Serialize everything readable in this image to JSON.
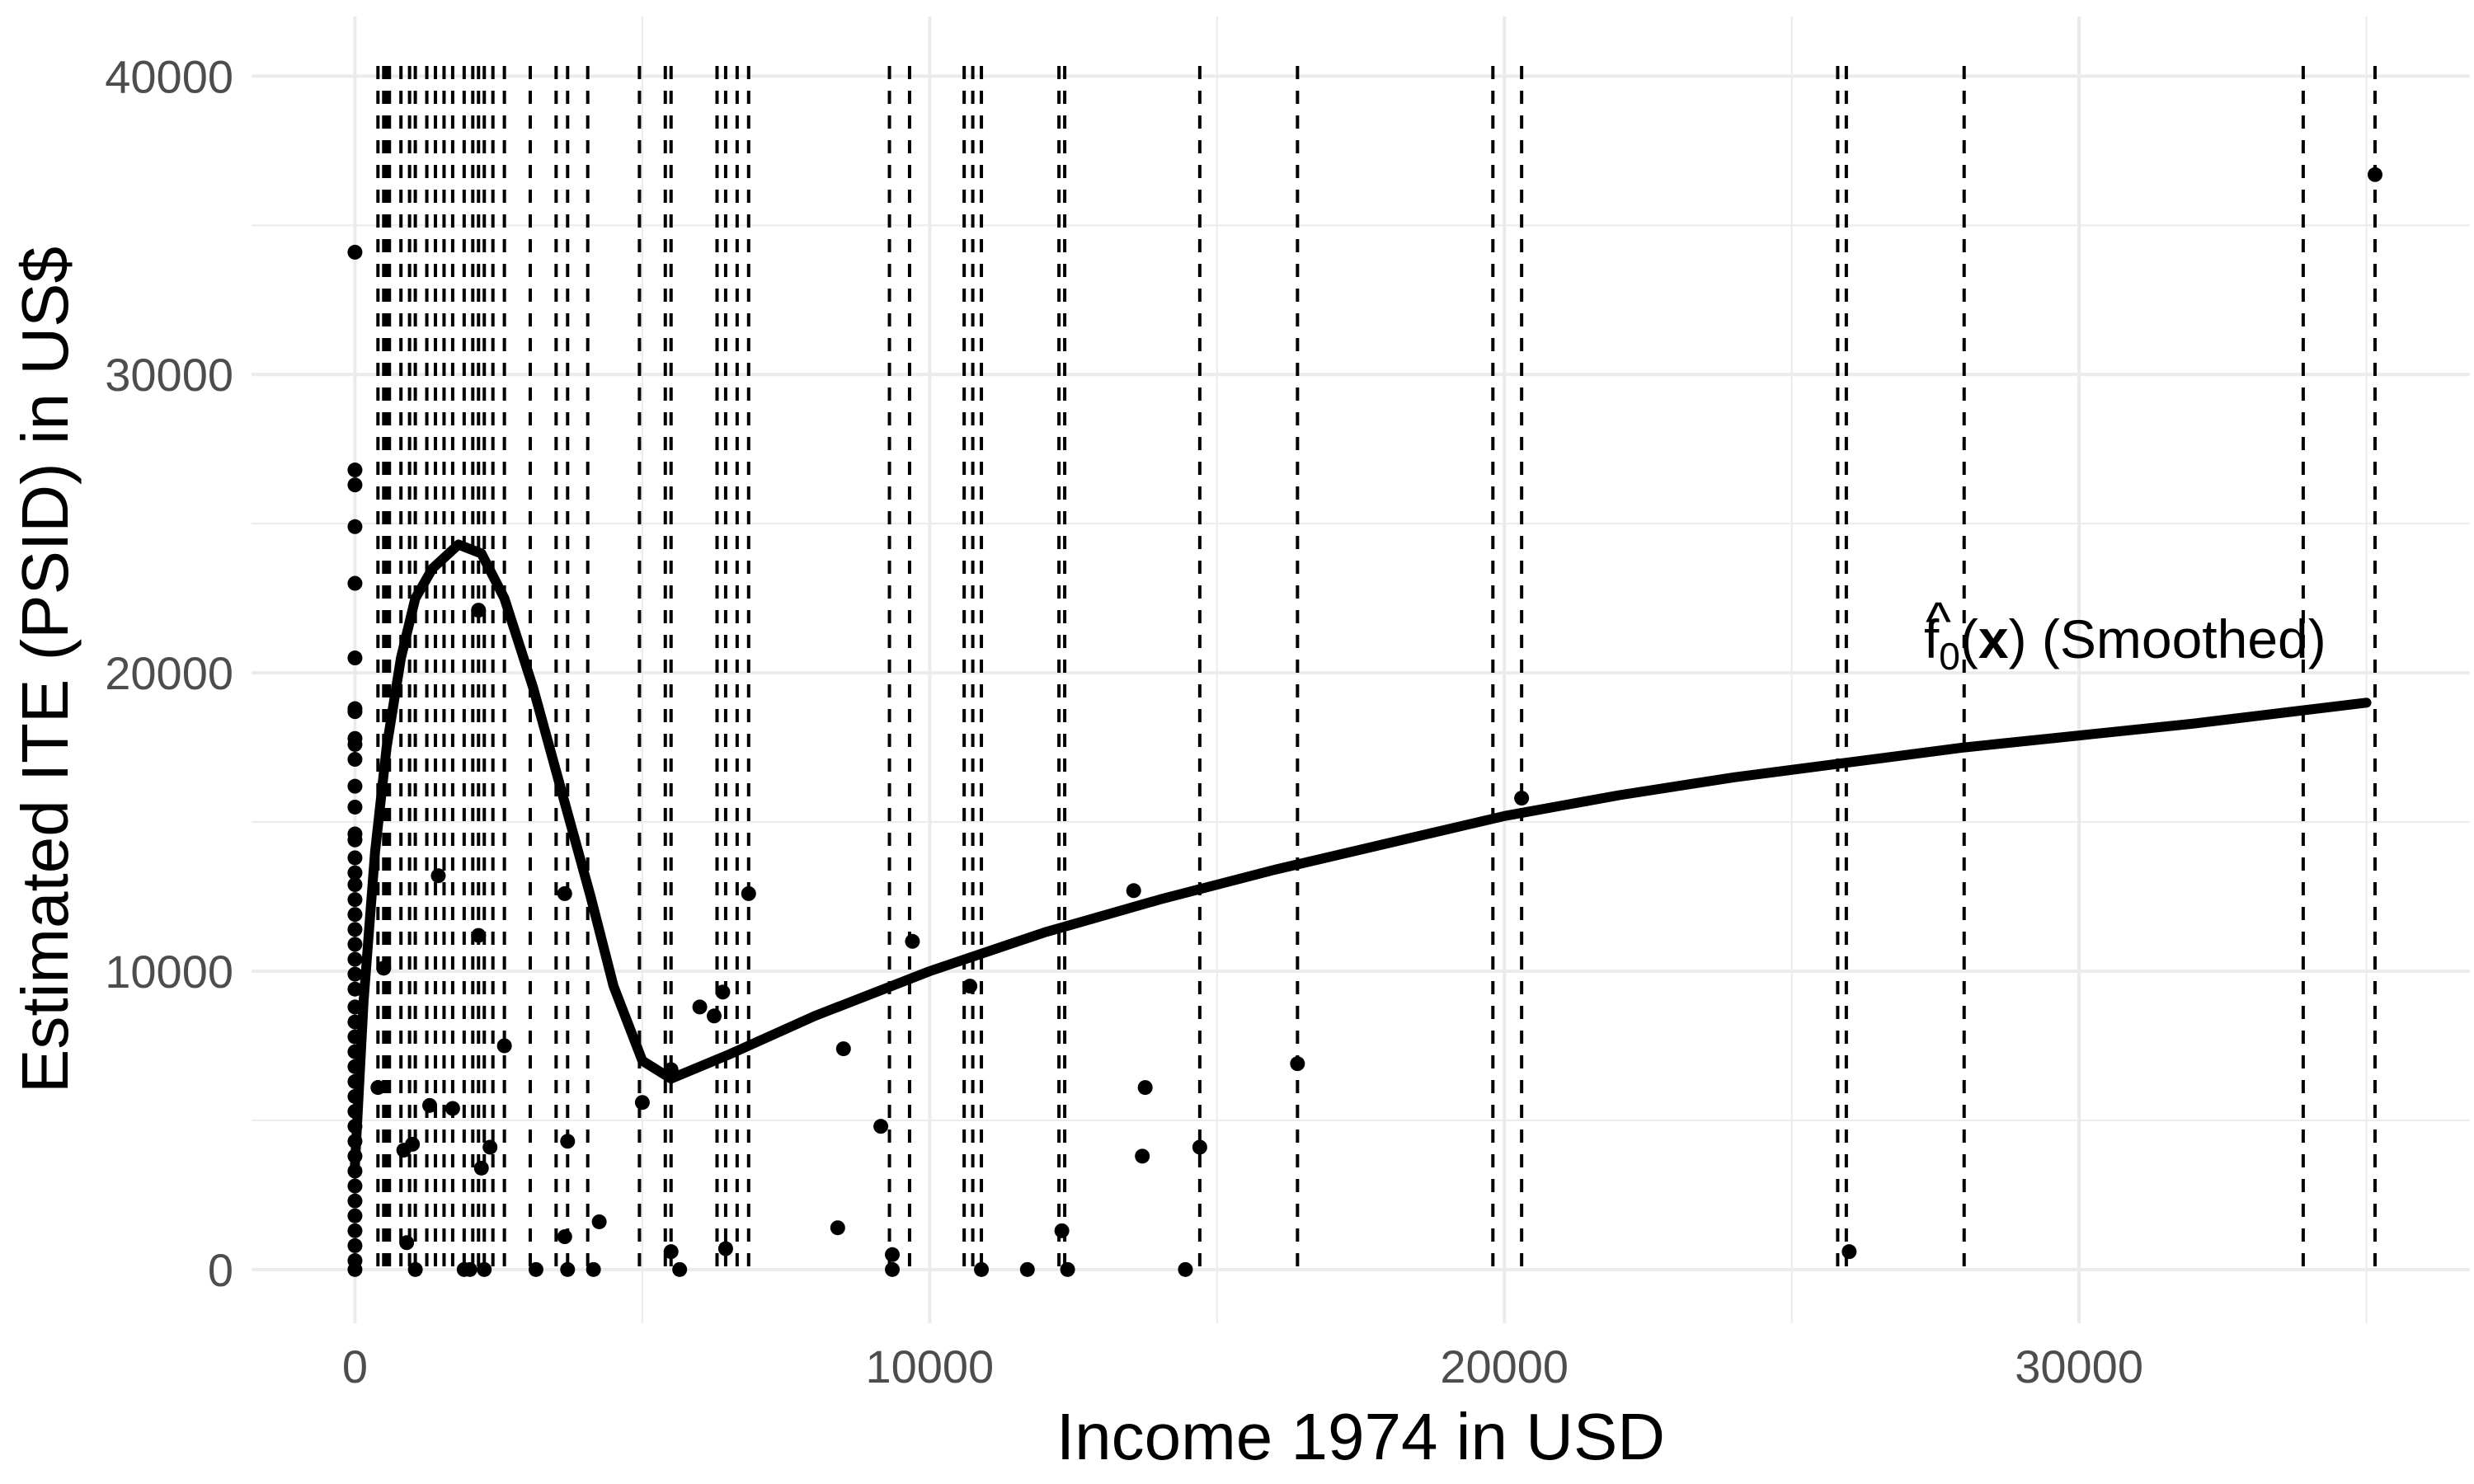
{
  "chart_data": {
    "type": "scatter",
    "xlabel": "Income 1974 in USD",
    "ylabel": "Estimated ITE (PSID) in US$",
    "xlim": [
      -1800,
      36800
    ],
    "ylim": [
      -1800,
      42000
    ],
    "x_ticks": [
      0,
      10000,
      20000,
      30000
    ],
    "x_tick_labels": [
      "0",
      "10000",
      "20000",
      "30000"
    ],
    "y_ticks": [
      0,
      10000,
      20000,
      30000,
      40000
    ],
    "y_tick_labels": [
      "0",
      "10000",
      "20000",
      "30000",
      "40000"
    ],
    "grid": true,
    "annotation": {
      "hat": "^",
      "f": "f",
      "sub": "0",
      "open": "(",
      "x": "x",
      "close": ")",
      "suffix": " (Smoothed)",
      "position": [
        27300,
        20500
      ]
    },
    "smoothed_curve": [
      [
        0,
        3500
      ],
      [
        150,
        9000
      ],
      [
        350,
        14000
      ],
      [
        550,
        17500
      ],
      [
        800,
        20500
      ],
      [
        1050,
        22500
      ],
      [
        1350,
        23500
      ],
      [
        1800,
        24300
      ],
      [
        2200,
        24000
      ],
      [
        2600,
        22500
      ],
      [
        3100,
        19500
      ],
      [
        3600,
        16000
      ],
      [
        4100,
        12500
      ],
      [
        4500,
        9500
      ],
      [
        5000,
        7000
      ],
      [
        5500,
        6400
      ],
      [
        6500,
        7200
      ],
      [
        8000,
        8500
      ],
      [
        10000,
        10000
      ],
      [
        12000,
        11300
      ],
      [
        14000,
        12400
      ],
      [
        16000,
        13400
      ],
      [
        18000,
        14300
      ],
      [
        20000,
        15200
      ],
      [
        22000,
        15900
      ],
      [
        24000,
        16500
      ],
      [
        26000,
        17000
      ],
      [
        28000,
        17500
      ],
      [
        30000,
        17900
      ],
      [
        32000,
        18300
      ],
      [
        35000,
        19000
      ]
    ],
    "vlines_x": [
      400,
      500,
      550,
      600,
      800,
      950,
      1050,
      1250,
      1400,
      1550,
      1700,
      1900,
      2050,
      2150,
      2250,
      2400,
      2600,
      3050,
      3500,
      3700,
      4050,
      4950,
      5400,
      5500,
      6300,
      6450,
      6650,
      6850,
      9300,
      9650,
      10600,
      10750,
      10900,
      12250,
      12350,
      14700,
      16400,
      19800,
      20300,
      25800,
      25950,
      28000,
      33900,
      35150
    ],
    "points": [
      [
        0,
        34100
      ],
      [
        0,
        26800
      ],
      [
        0,
        26300
      ],
      [
        0,
        24900
      ],
      [
        0,
        23000
      ],
      [
        0,
        20500
      ],
      [
        0,
        18800
      ],
      [
        0,
        18700
      ],
      [
        0,
        17800
      ],
      [
        0,
        17600
      ],
      [
        0,
        17100
      ],
      [
        0,
        16200
      ],
      [
        0,
        15500
      ],
      [
        0,
        14600
      ],
      [
        0,
        14400
      ],
      [
        0,
        13800
      ],
      [
        0,
        13300
      ],
      [
        0,
        12900
      ],
      [
        0,
        12400
      ],
      [
        0,
        11900
      ],
      [
        0,
        11400
      ],
      [
        0,
        10900
      ],
      [
        0,
        10400
      ],
      [
        0,
        9900
      ],
      [
        0,
        9400
      ],
      [
        0,
        8800
      ],
      [
        0,
        8300
      ],
      [
        0,
        7800
      ],
      [
        0,
        7300
      ],
      [
        0,
        6800
      ],
      [
        0,
        6300
      ],
      [
        0,
        5800
      ],
      [
        0,
        5300
      ],
      [
        0,
        4800
      ],
      [
        0,
        4300
      ],
      [
        0,
        3800
      ],
      [
        0,
        3300
      ],
      [
        0,
        2800
      ],
      [
        0,
        2300
      ],
      [
        0,
        1800
      ],
      [
        0,
        1300
      ],
      [
        0,
        800
      ],
      [
        0,
        300
      ],
      [
        0,
        0
      ],
      [
        400,
        6100
      ],
      [
        500,
        10100
      ],
      [
        850,
        4000
      ],
      [
        900,
        900
      ],
      [
        1000,
        4200
      ],
      [
        1050,
        0
      ],
      [
        1300,
        5500
      ],
      [
        1450,
        13200
      ],
      [
        1700,
        5400
      ],
      [
        1900,
        0
      ],
      [
        2000,
        0
      ],
      [
        2150,
        22100
      ],
      [
        2150,
        11200
      ],
      [
        2200,
        3400
      ],
      [
        2250,
        0
      ],
      [
        2350,
        4100
      ],
      [
        2600,
        7500
      ],
      [
        3150,
        0
      ],
      [
        3650,
        12600
      ],
      [
        3650,
        1100
      ],
      [
        3700,
        4300
      ],
      [
        3700,
        0
      ],
      [
        4150,
        0
      ],
      [
        4250,
        1600
      ],
      [
        5000,
        5600
      ],
      [
        5500,
        6700
      ],
      [
        5500,
        600
      ],
      [
        5650,
        0
      ],
      [
        6000,
        8800
      ],
      [
        6250,
        8500
      ],
      [
        6400,
        9300
      ],
      [
        6450,
        700
      ],
      [
        6850,
        12600
      ],
      [
        8400,
        1400
      ],
      [
        8500,
        7400
      ],
      [
        9150,
        4800
      ],
      [
        9350,
        500
      ],
      [
        9350,
        0
      ],
      [
        9700,
        11000
      ],
      [
        10700,
        9500
      ],
      [
        10900,
        0
      ],
      [
        11700,
        0
      ],
      [
        12300,
        1300
      ],
      [
        12400,
        0
      ],
      [
        13550,
        12700
      ],
      [
        13700,
        3800
      ],
      [
        13750,
        6100
      ],
      [
        14450,
        0
      ],
      [
        14700,
        4100
      ],
      [
        16400,
        6900
      ],
      [
        20300,
        15800
      ],
      [
        26000,
        600
      ],
      [
        35150,
        36700
      ]
    ]
  }
}
